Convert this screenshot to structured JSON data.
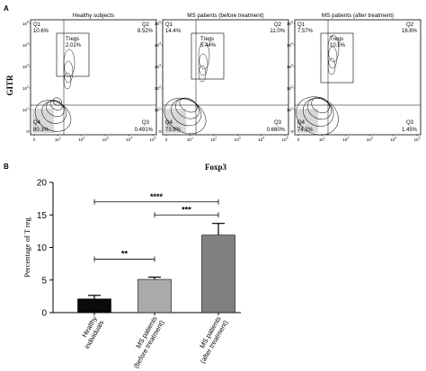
{
  "figure": {
    "panel_a_label": "A",
    "panel_b_label": "B",
    "gitr_label": "GITR",
    "foxp3_label": "Foxp3",
    "flow_panels": [
      {
        "title": "Healthy subjects",
        "gate": "Tregs",
        "gate_value": "2.01%",
        "q1": "Q1",
        "q1_val": "10.6%",
        "q2": "Q2",
        "q2_val": "8.52%",
        "q3": "Q3",
        "q3_val": "0.491%",
        "q4": "Q4",
        "q4_val": "80.3%"
      },
      {
        "title": "MS patients (before treatment)",
        "gate": "Tregs",
        "gate_value": "5.44%",
        "q1": "Q1",
        "q1_val": "14.4%",
        "q2": "Q2",
        "q2_val": "11.0%",
        "q3": "Q3",
        "q3_val": "0.680%",
        "q4": "Q4",
        "q4_val": "73.9%"
      },
      {
        "title": "MS patients (after treatment)",
        "gate": "Tregs",
        "gate_value": "10.5%",
        "q1": "Q1",
        "q1_val": "7.57%",
        "q2": "Q2",
        "q2_val": "16.8%",
        "q3": "Q3",
        "q3_val": "1.45%",
        "q4": "Q4",
        "q4_val": "74.2%"
      }
    ],
    "axis_ticks": {
      "y": [
        "0",
        "10",
        "10",
        "10",
        "10",
        "10"
      ],
      "y_exp": [
        "",
        "1",
        "2",
        "3",
        "4",
        "5"
      ],
      "x": [
        "0",
        "10",
        "10",
        "10",
        "10",
        "10"
      ],
      "x_exp": [
        "",
        "1",
        "2",
        "3",
        "4",
        "5"
      ]
    }
  },
  "chart_data": {
    "type": "bar",
    "ylabel": "Percentage of T reg",
    "ylim": [
      0,
      20
    ],
    "yticks": [
      0,
      5,
      10,
      15,
      20
    ],
    "categories": [
      [
        "Healthy",
        "individuals"
      ],
      [
        "MS patients",
        "(before treatment)"
      ],
      [
        "MS patients",
        "(after treatment)"
      ]
    ],
    "values": [
      2.1,
      5.1,
      11.9
    ],
    "errors": [
      0.55,
      0.35,
      1.8
    ],
    "colors": [
      "#0a0a0a",
      "#aaaaaa",
      "#808080"
    ],
    "significance": [
      {
        "from": 0,
        "to": 1,
        "label": "**"
      },
      {
        "from": 1,
        "to": 2,
        "label": "***"
      },
      {
        "from": 0,
        "to": 2,
        "label": "****"
      }
    ]
  }
}
